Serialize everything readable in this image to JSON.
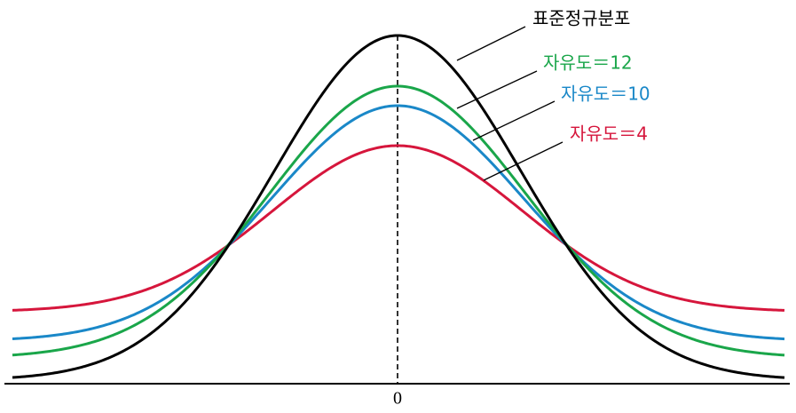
{
  "curves": [
    {
      "label": "표준정규분포",
      "color": "#000000"
    },
    {
      "label": "자유도＝12",
      "color": "#1aa64a"
    },
    {
      "label": "자유도＝10",
      "color": "#1a88c8"
    },
    {
      "label": "자유도＝4",
      "color": "#d6163c"
    }
  ],
  "axis": {
    "origin_label": "0"
  }
}
